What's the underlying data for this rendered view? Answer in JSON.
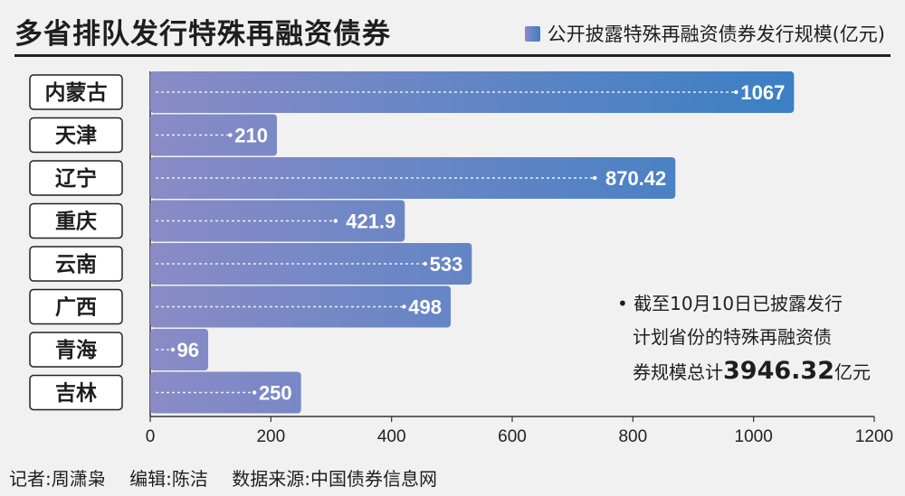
{
  "title": "多省排队发行特殊再融资债券",
  "legend_label": "公开披露特殊再融资债券发行规模(亿元)",
  "colors": {
    "bar_start": "#8a8bc6",
    "bar_end": "#3a7fc4",
    "label_box_border": "#222222"
  },
  "chart_data": {
    "type": "bar",
    "orientation": "horizontal",
    "categories": [
      "内蒙古",
      "天津",
      "辽宁",
      "重庆",
      "云南",
      "广西",
      "青海",
      "吉林"
    ],
    "values": [
      1067,
      210,
      870.42,
      421.9,
      533,
      498,
      96,
      250
    ],
    "value_labels": [
      "1067",
      "210",
      "870.42",
      "421.9",
      "533",
      "498",
      "96",
      "250"
    ],
    "xlim": [
      0,
      1200
    ],
    "xticks": [
      "0",
      "200",
      "400",
      "600",
      "800",
      "1000",
      "1200"
    ],
    "series": [
      {
        "name": "公开披露特殊再融资债券发行规模(亿元)",
        "values": [
          1067,
          210,
          870.42,
          421.9,
          533,
          498,
          96,
          250
        ]
      }
    ]
  },
  "note": {
    "bullet": "•",
    "line1": "截至10月10日已披露发行",
    "line2": "计划省份的特殊再融资债",
    "line3_prefix": "券规模总计",
    "total": "3946.32",
    "unit": "亿元"
  },
  "credits": {
    "reporter": "记者:周潇枭",
    "editor": "编辑:陈洁",
    "source": "数据来源:中国债券信息网"
  }
}
